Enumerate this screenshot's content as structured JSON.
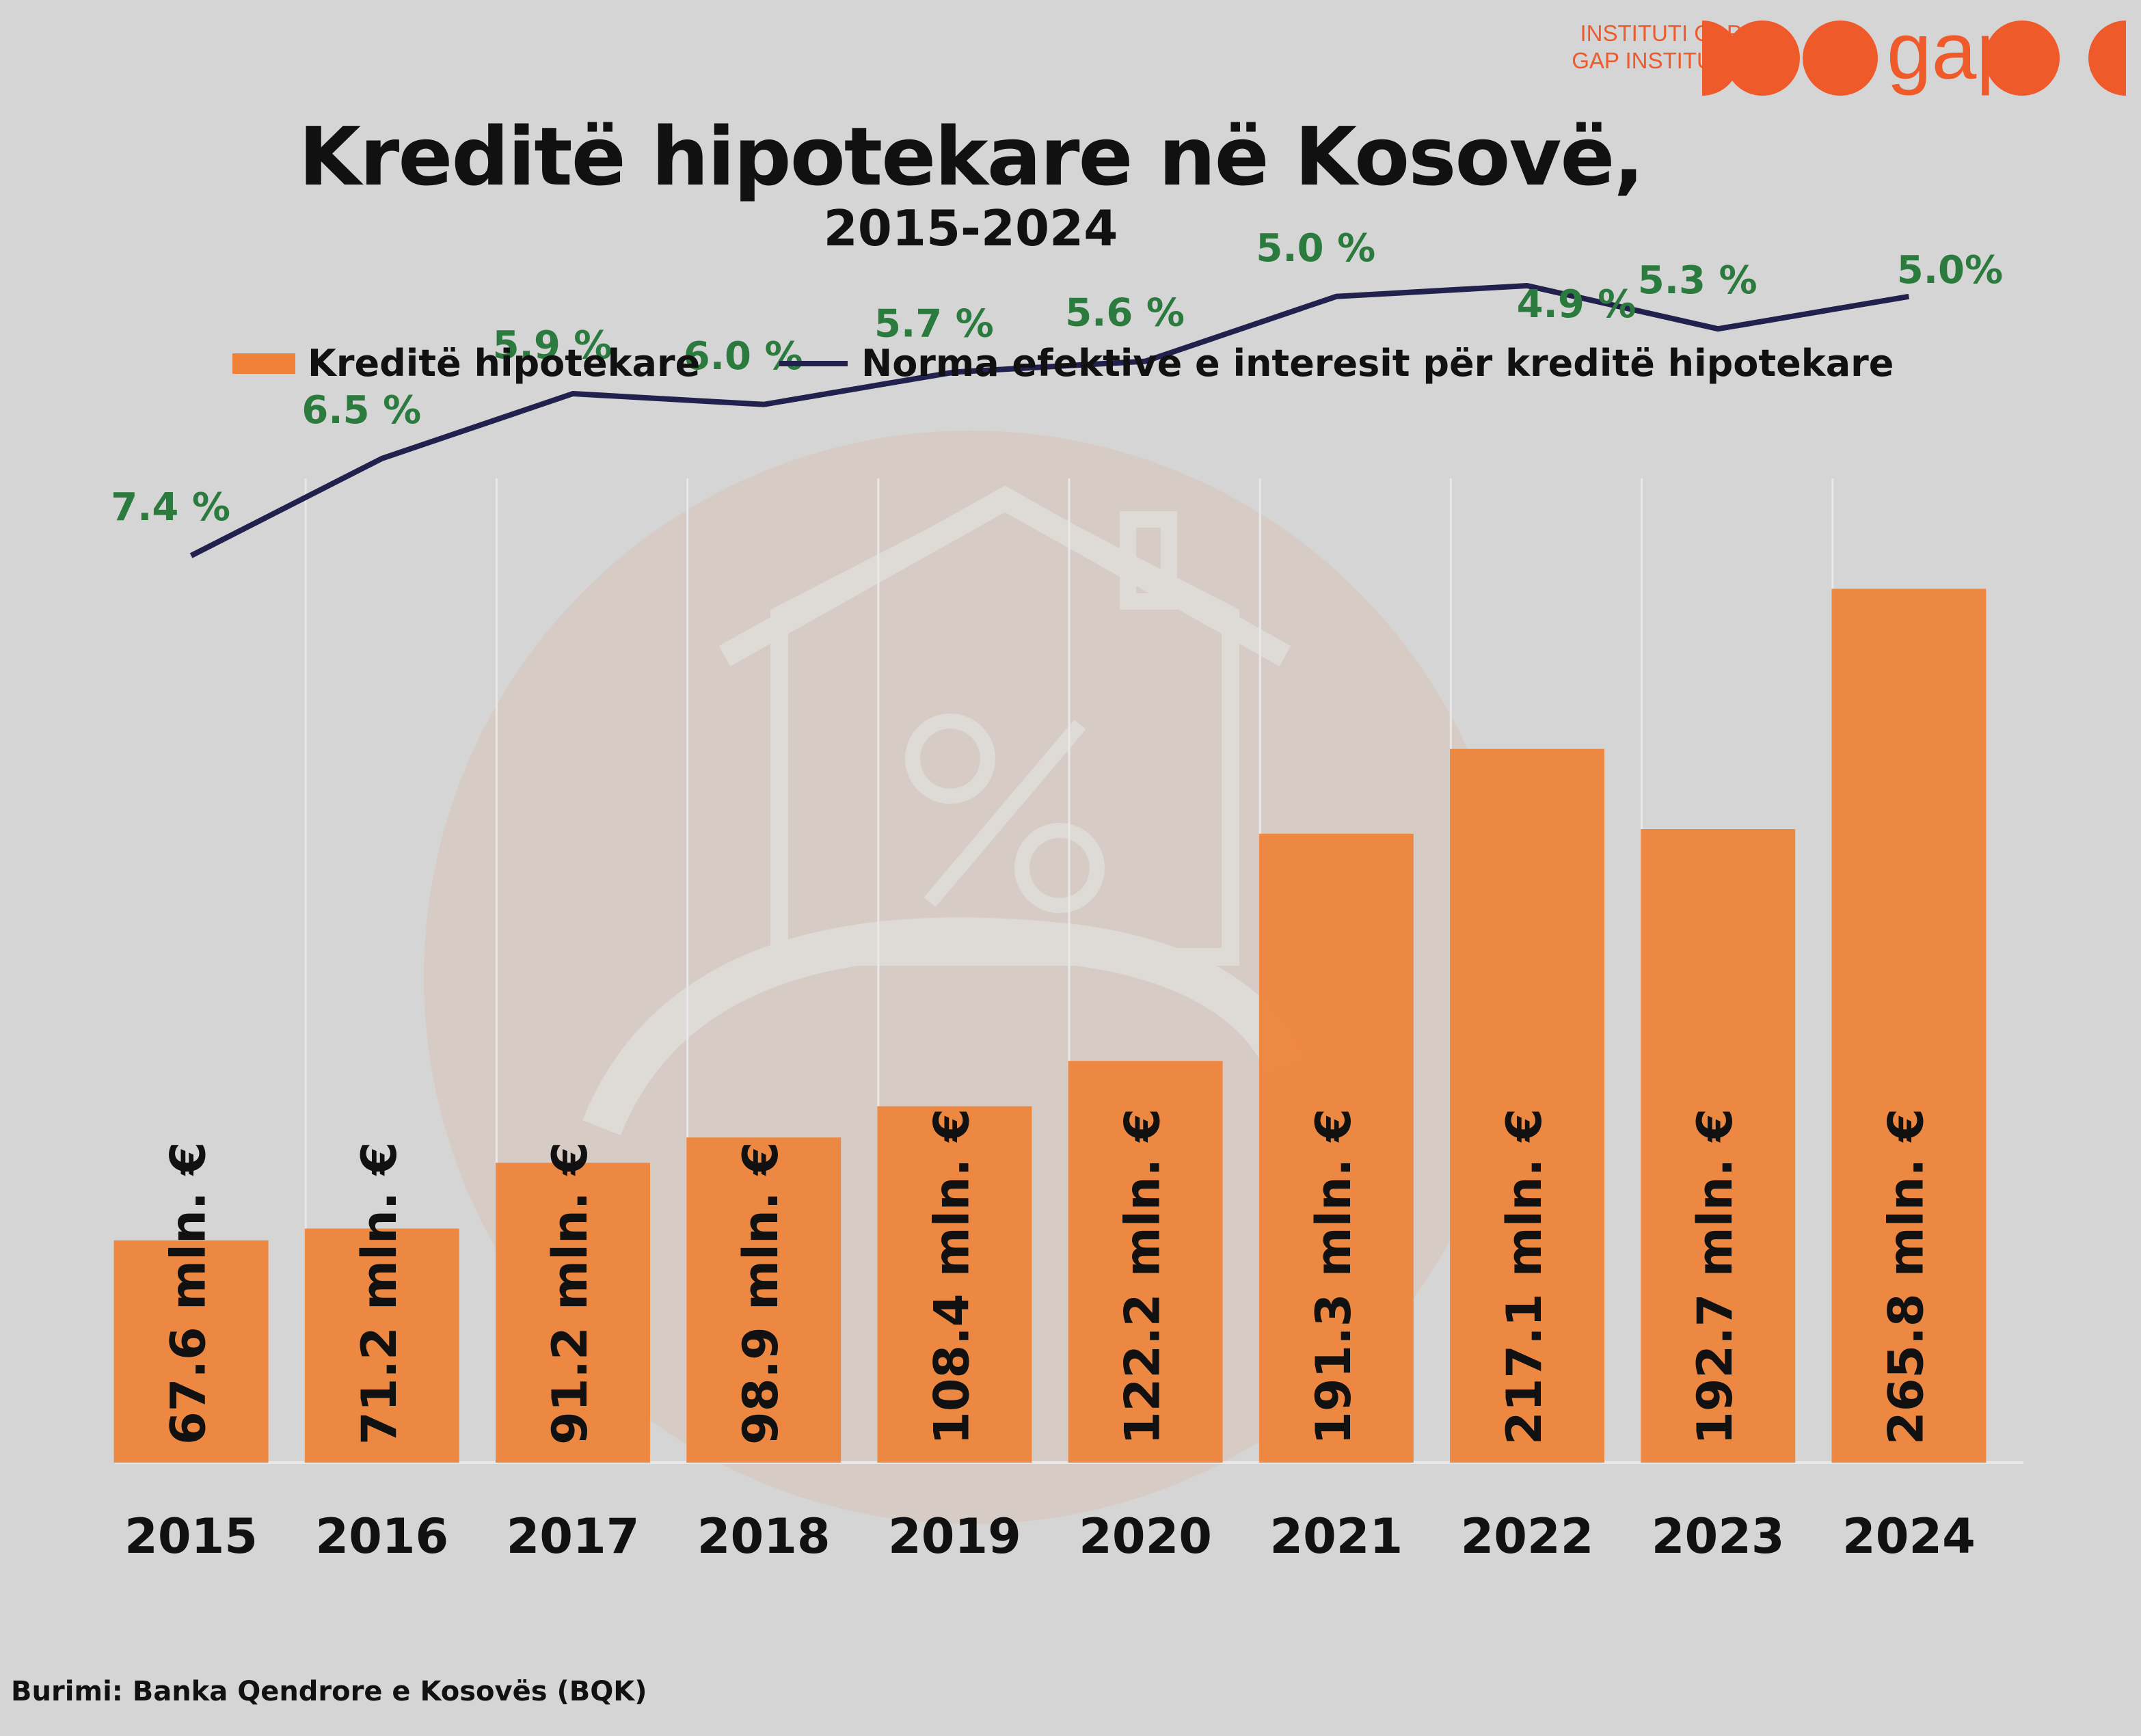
{
  "header": {
    "title": "Kreditë hipotekare në Kosovë,",
    "subtitle": "2015-2024",
    "brand_line1": "INSTITUTI GAP",
    "brand_line2": "GAP INSTITUTE",
    "brand_logo_text": "gap"
  },
  "legend": {
    "bars_label": "Kreditë hipotekare",
    "line_label": "Norma efektive e interesit për kreditë hipotekare"
  },
  "source": "Burimi: Banka Qendrore e Kosovës (BQK)",
  "colors": {
    "bar": "#ef8238",
    "line": "#22204d",
    "rate_label": "#2b7a3e",
    "brand": "#ef5a2b",
    "background": "#d6d5d5"
  },
  "chart_data": {
    "type": "bar",
    "title": "Kreditë hipotekare në Kosovë,",
    "subtitle": "2015-2024",
    "categories": [
      "2015",
      "2016",
      "2017",
      "2018",
      "2019",
      "2020",
      "2021",
      "2022",
      "2023",
      "2024"
    ],
    "series": [
      {
        "name": "Kreditë hipotekare",
        "type": "bar",
        "values": [
          67.6,
          71.2,
          91.2,
          98.9,
          108.4,
          122.2,
          191.3,
          217.1,
          192.7,
          265.8
        ],
        "labels": [
          "67.6 mln. €",
          "71.2 mln. €",
          "91.2 mln. €",
          "98.9 mln. €",
          "108.4 mln. €",
          "122.2 mln. €",
          "191.3 mln. €",
          "217.1 mln. €",
          "192.7 mln. €",
          "265.8 mln. €"
        ]
      },
      {
        "name": "Norma efektive e interesit për kreditë hipotekare",
        "type": "line",
        "values": [
          7.4,
          6.5,
          5.9,
          6.0,
          5.7,
          5.6,
          5.0,
          4.9,
          5.3,
          5.0
        ],
        "labels": [
          "7.4 %",
          "6.5 %",
          "5.9 %",
          "6.0 %",
          "5.7 %",
          "5.6 %",
          "5.0 %",
          "4.9 %",
          "5.3 %",
          "5.0%"
        ]
      }
    ],
    "bar_ylim": [
      0,
      300
    ],
    "line_ylim": [
      2,
      8
    ],
    "grid": true,
    "legend_position": "top"
  }
}
